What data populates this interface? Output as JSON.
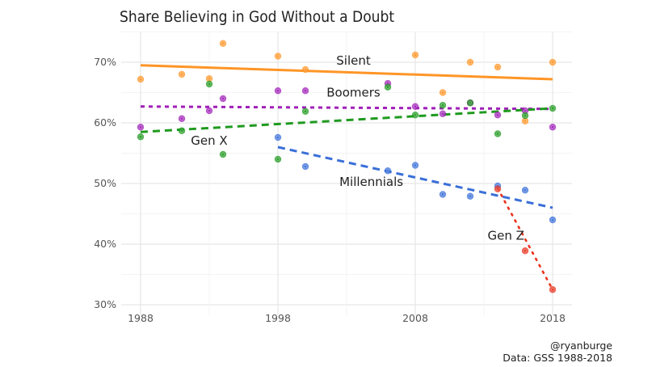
{
  "chart_data": {
    "type": "scatter",
    "title": "Share Believing in God Without a Doubt",
    "xlabel": "",
    "ylabel": "",
    "xlim": [
      1987,
      2019.5
    ],
    "ylim": [
      29.5,
      75
    ],
    "x_ticks": [
      1988,
      1998,
      2008,
      2018
    ],
    "x_tick_labels": [
      "1988",
      "1998",
      "2008",
      "2018"
    ],
    "y_ticks": [
      30,
      40,
      50,
      60,
      70
    ],
    "y_tick_labels": [
      "30%",
      "40%",
      "50%",
      "60%",
      "70%"
    ],
    "grid": true,
    "legend": "none (direct labels)",
    "series": [
      {
        "name": "Silent",
        "color": "#ff9526",
        "line_style": "solid",
        "points": [
          [
            1988,
            67.2
          ],
          [
            1991,
            68.0
          ],
          [
            1993,
            67.3
          ],
          [
            1994,
            73.1
          ],
          [
            1998,
            71.0
          ],
          [
            2000,
            68.8
          ],
          [
            2008,
            71.2
          ],
          [
            2010,
            65.0
          ],
          [
            2012,
            70.0
          ],
          [
            2014,
            69.2
          ],
          [
            2016,
            60.3
          ],
          [
            2018,
            70.0
          ]
        ],
        "trend": [
          [
            1988,
            69.5
          ],
          [
            2018,
            67.2
          ]
        ],
        "label_at": [
          2003.5,
          70.3
        ]
      },
      {
        "name": "Boomers",
        "color": "#a020b8",
        "line_style": "dotted",
        "points": [
          [
            1988,
            59.3
          ],
          [
            1991,
            60.7
          ],
          [
            1993,
            62.0
          ],
          [
            1994,
            64.0
          ],
          [
            1998,
            65.3
          ],
          [
            2000,
            65.3
          ],
          [
            2006,
            66.5
          ],
          [
            2008,
            62.7
          ],
          [
            2010,
            61.5
          ],
          [
            2012,
            63.3
          ],
          [
            2014,
            61.3
          ],
          [
            2016,
            62.0
          ],
          [
            2018,
            59.3
          ]
        ],
        "trend": [
          [
            1988,
            62.7
          ],
          [
            2018,
            62.3
          ]
        ],
        "label_at": [
          2003.5,
          65.0
        ]
      },
      {
        "name": "Gen X",
        "color": "#1f9a1f",
        "line_style": "dashed",
        "points": [
          [
            1988,
            57.7
          ],
          [
            1991,
            58.7
          ],
          [
            1993,
            66.4
          ],
          [
            1994,
            54.8
          ],
          [
            1998,
            54.0
          ],
          [
            2000,
            61.9
          ],
          [
            2006,
            65.9
          ],
          [
            2008,
            61.3
          ],
          [
            2010,
            62.9
          ],
          [
            2012,
            63.3
          ],
          [
            2014,
            58.2
          ],
          [
            2016,
            61.2
          ],
          [
            2018,
            62.4
          ]
        ],
        "trend": [
          [
            1988,
            58.5
          ],
          [
            2018,
            62.4
          ]
        ],
        "label_at": [
          1993,
          57.1
        ]
      },
      {
        "name": "Millennials",
        "color": "#3a6fd8",
        "line_style": "dashed",
        "points": [
          [
            1998,
            57.6
          ],
          [
            2000,
            52.8
          ],
          [
            2006,
            52.1
          ],
          [
            2008,
            53.0
          ],
          [
            2010,
            48.2
          ],
          [
            2012,
            47.9
          ],
          [
            2014,
            49.6
          ],
          [
            2016,
            48.9
          ],
          [
            2018,
            44.0
          ]
        ],
        "trend": [
          [
            1998,
            56.0
          ],
          [
            2018,
            46.0
          ]
        ],
        "label_at": [
          2004.8,
          50.3
        ]
      },
      {
        "name": "Gen Z",
        "color": "#e8321e",
        "line_style": "dotted",
        "points": [
          [
            2014,
            49.1
          ],
          [
            2016,
            38.9
          ],
          [
            2018,
            32.5
          ]
        ],
        "trend": [
          [
            2014,
            49.2
          ],
          [
            2018,
            32.5
          ]
        ],
        "label_at": [
          2014.6,
          41.4
        ]
      }
    ],
    "caption": [
      "@ryanburge",
      "Data: GSS 1988-2018"
    ]
  }
}
